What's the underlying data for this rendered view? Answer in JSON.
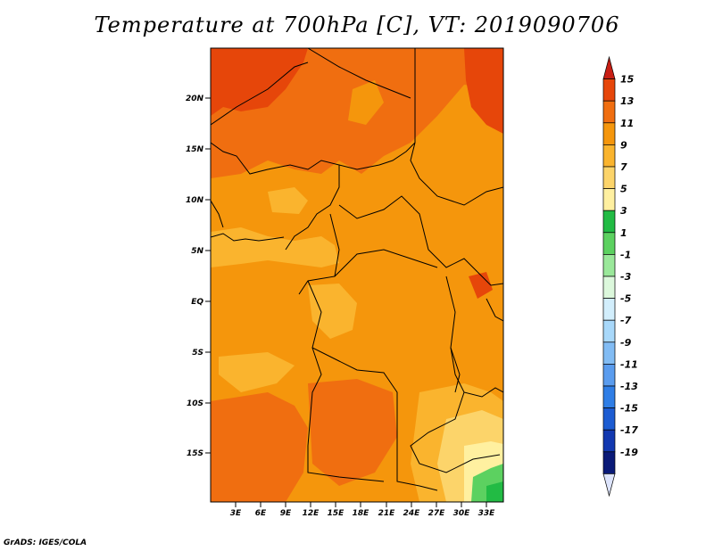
{
  "title": "Temperature at 700hPa [C], VT: 2019090706",
  "credit": "GrADS: IGES/COLA",
  "map": {
    "lat_ticks": [
      "20N",
      "15N",
      "10N",
      "5N",
      "EQ",
      "5S",
      "10S",
      "15S"
    ],
    "lon_ticks": [
      "3E",
      "6E",
      "9E",
      "12E",
      "15E",
      "18E",
      "21E",
      "24E",
      "27E",
      "30E",
      "33E"
    ]
  },
  "colorbar": {
    "labels": [
      "15",
      "13",
      "11",
      "9",
      "7",
      "5",
      "3",
      "1",
      "-1",
      "-3",
      "-5",
      "-7",
      "-9",
      "-11",
      "-13",
      "-15",
      "-17",
      "-19"
    ],
    "colors": [
      "#c81e14",
      "#e6460a",
      "#f06e10",
      "#f5960c",
      "#fab42e",
      "#fcd46a",
      "#fff0a0",
      "#22bb44",
      "#5cd160",
      "#9ae89a",
      "#dcf8dc",
      "#d2eefc",
      "#a8d8fa",
      "#82bcf4",
      "#5a9cee",
      "#2f7ee6",
      "#1c5cd2",
      "#1238b0",
      "#0a1a78",
      "#dde4fc"
    ]
  }
}
